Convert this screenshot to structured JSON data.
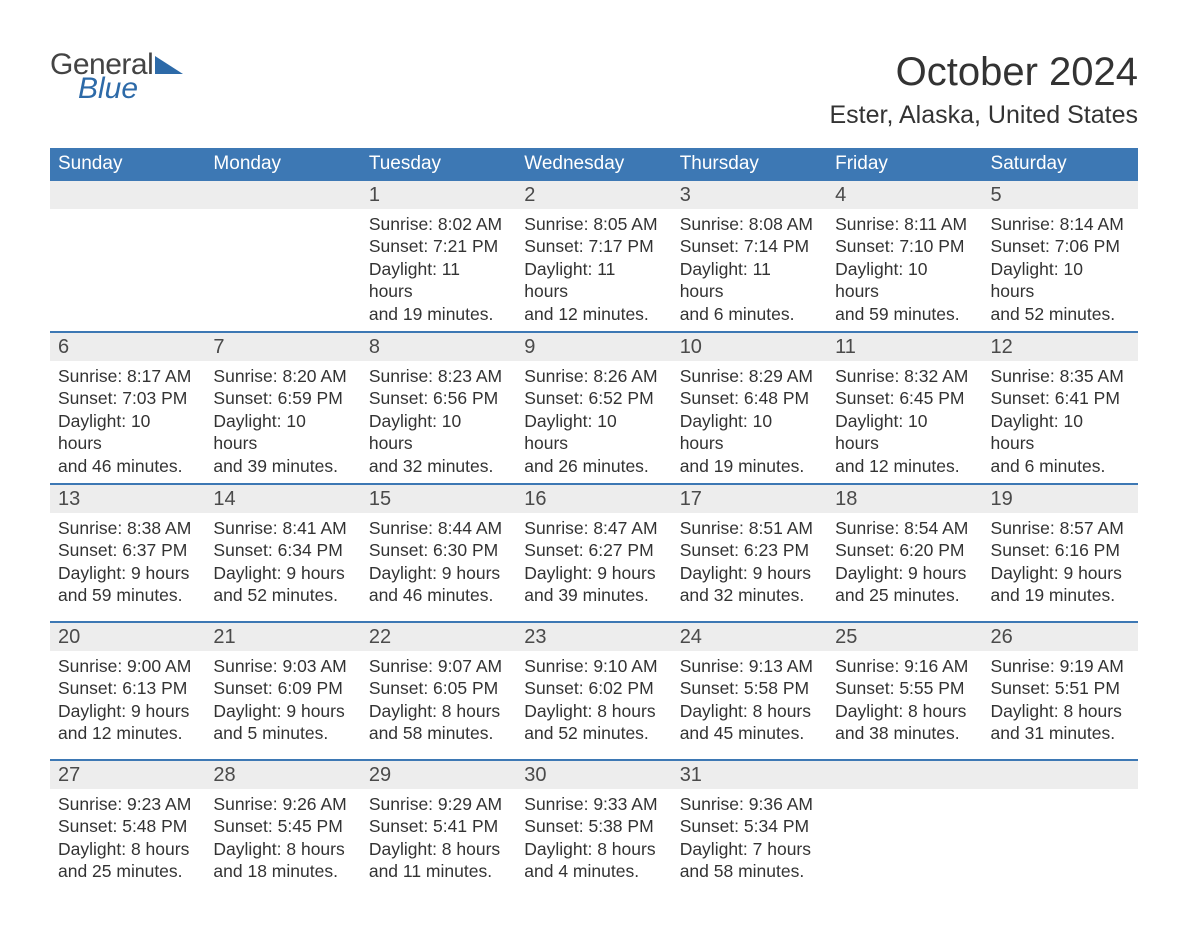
{
  "logo": {
    "text_general": "General",
    "text_blue": "Blue"
  },
  "header": {
    "month_title": "October 2024",
    "location": "Ester, Alaska, United States"
  },
  "colors": {
    "header_bg": "#3d78b4",
    "header_fg": "#ffffff",
    "daynum_bg": "#ededed",
    "week_divider": "#3d78b4",
    "body_text": "#333333",
    "logo_blue": "#2d6aa8",
    "page_bg": "#ffffff"
  },
  "daynames": [
    "Sunday",
    "Monday",
    "Tuesday",
    "Wednesday",
    "Thursday",
    "Friday",
    "Saturday"
  ],
  "weeks": [
    [
      {
        "num": "",
        "lines": [
          "",
          "",
          "",
          ""
        ]
      },
      {
        "num": "",
        "lines": [
          "",
          "",
          "",
          ""
        ]
      },
      {
        "num": "1",
        "lines": [
          "Sunrise: 8:02 AM",
          "Sunset: 7:21 PM",
          "Daylight: 11 hours",
          "and 19 minutes."
        ]
      },
      {
        "num": "2",
        "lines": [
          "Sunrise: 8:05 AM",
          "Sunset: 7:17 PM",
          "Daylight: 11 hours",
          "and 12 minutes."
        ]
      },
      {
        "num": "3",
        "lines": [
          "Sunrise: 8:08 AM",
          "Sunset: 7:14 PM",
          "Daylight: 11 hours",
          "and 6 minutes."
        ]
      },
      {
        "num": "4",
        "lines": [
          "Sunrise: 8:11 AM",
          "Sunset: 7:10 PM",
          "Daylight: 10 hours",
          "and 59 minutes."
        ]
      },
      {
        "num": "5",
        "lines": [
          "Sunrise: 8:14 AM",
          "Sunset: 7:06 PM",
          "Daylight: 10 hours",
          "and 52 minutes."
        ]
      }
    ],
    [
      {
        "num": "6",
        "lines": [
          "Sunrise: 8:17 AM",
          "Sunset: 7:03 PM",
          "Daylight: 10 hours",
          "and 46 minutes."
        ]
      },
      {
        "num": "7",
        "lines": [
          "Sunrise: 8:20 AM",
          "Sunset: 6:59 PM",
          "Daylight: 10 hours",
          "and 39 minutes."
        ]
      },
      {
        "num": "8",
        "lines": [
          "Sunrise: 8:23 AM",
          "Sunset: 6:56 PM",
          "Daylight: 10 hours",
          "and 32 minutes."
        ]
      },
      {
        "num": "9",
        "lines": [
          "Sunrise: 8:26 AM",
          "Sunset: 6:52 PM",
          "Daylight: 10 hours",
          "and 26 minutes."
        ]
      },
      {
        "num": "10",
        "lines": [
          "Sunrise: 8:29 AM",
          "Sunset: 6:48 PM",
          "Daylight: 10 hours",
          "and 19 minutes."
        ]
      },
      {
        "num": "11",
        "lines": [
          "Sunrise: 8:32 AM",
          "Sunset: 6:45 PM",
          "Daylight: 10 hours",
          "and 12 minutes."
        ]
      },
      {
        "num": "12",
        "lines": [
          "Sunrise: 8:35 AM",
          "Sunset: 6:41 PM",
          "Daylight: 10 hours",
          "and 6 minutes."
        ]
      }
    ],
    [
      {
        "num": "13",
        "lines": [
          "Sunrise: 8:38 AM",
          "Sunset: 6:37 PM",
          "Daylight: 9 hours",
          "and 59 minutes."
        ]
      },
      {
        "num": "14",
        "lines": [
          "Sunrise: 8:41 AM",
          "Sunset: 6:34 PM",
          "Daylight: 9 hours",
          "and 52 minutes."
        ]
      },
      {
        "num": "15",
        "lines": [
          "Sunrise: 8:44 AM",
          "Sunset: 6:30 PM",
          "Daylight: 9 hours",
          "and 46 minutes."
        ]
      },
      {
        "num": "16",
        "lines": [
          "Sunrise: 8:47 AM",
          "Sunset: 6:27 PM",
          "Daylight: 9 hours",
          "and 39 minutes."
        ]
      },
      {
        "num": "17",
        "lines": [
          "Sunrise: 8:51 AM",
          "Sunset: 6:23 PM",
          "Daylight: 9 hours",
          "and 32 minutes."
        ]
      },
      {
        "num": "18",
        "lines": [
          "Sunrise: 8:54 AM",
          "Sunset: 6:20 PM",
          "Daylight: 9 hours",
          "and 25 minutes."
        ]
      },
      {
        "num": "19",
        "lines": [
          "Sunrise: 8:57 AM",
          "Sunset: 6:16 PM",
          "Daylight: 9 hours",
          "and 19 minutes."
        ]
      }
    ],
    [
      {
        "num": "20",
        "lines": [
          "Sunrise: 9:00 AM",
          "Sunset: 6:13 PM",
          "Daylight: 9 hours",
          "and 12 minutes."
        ]
      },
      {
        "num": "21",
        "lines": [
          "Sunrise: 9:03 AM",
          "Sunset: 6:09 PM",
          "Daylight: 9 hours",
          "and 5 minutes."
        ]
      },
      {
        "num": "22",
        "lines": [
          "Sunrise: 9:07 AM",
          "Sunset: 6:05 PM",
          "Daylight: 8 hours",
          "and 58 minutes."
        ]
      },
      {
        "num": "23",
        "lines": [
          "Sunrise: 9:10 AM",
          "Sunset: 6:02 PM",
          "Daylight: 8 hours",
          "and 52 minutes."
        ]
      },
      {
        "num": "24",
        "lines": [
          "Sunrise: 9:13 AM",
          "Sunset: 5:58 PM",
          "Daylight: 8 hours",
          "and 45 minutes."
        ]
      },
      {
        "num": "25",
        "lines": [
          "Sunrise: 9:16 AM",
          "Sunset: 5:55 PM",
          "Daylight: 8 hours",
          "and 38 minutes."
        ]
      },
      {
        "num": "26",
        "lines": [
          "Sunrise: 9:19 AM",
          "Sunset: 5:51 PM",
          "Daylight: 8 hours",
          "and 31 minutes."
        ]
      }
    ],
    [
      {
        "num": "27",
        "lines": [
          "Sunrise: 9:23 AM",
          "Sunset: 5:48 PM",
          "Daylight: 8 hours",
          "and 25 minutes."
        ]
      },
      {
        "num": "28",
        "lines": [
          "Sunrise: 9:26 AM",
          "Sunset: 5:45 PM",
          "Daylight: 8 hours",
          "and 18 minutes."
        ]
      },
      {
        "num": "29",
        "lines": [
          "Sunrise: 9:29 AM",
          "Sunset: 5:41 PM",
          "Daylight: 8 hours",
          "and 11 minutes."
        ]
      },
      {
        "num": "30",
        "lines": [
          "Sunrise: 9:33 AM",
          "Sunset: 5:38 PM",
          "Daylight: 8 hours",
          "and 4 minutes."
        ]
      },
      {
        "num": "31",
        "lines": [
          "Sunrise: 9:36 AM",
          "Sunset: 5:34 PM",
          "Daylight: 7 hours",
          "and 58 minutes."
        ]
      },
      {
        "num": "",
        "lines": [
          "",
          "",
          "",
          ""
        ]
      },
      {
        "num": "",
        "lines": [
          "",
          "",
          "",
          ""
        ]
      }
    ]
  ]
}
